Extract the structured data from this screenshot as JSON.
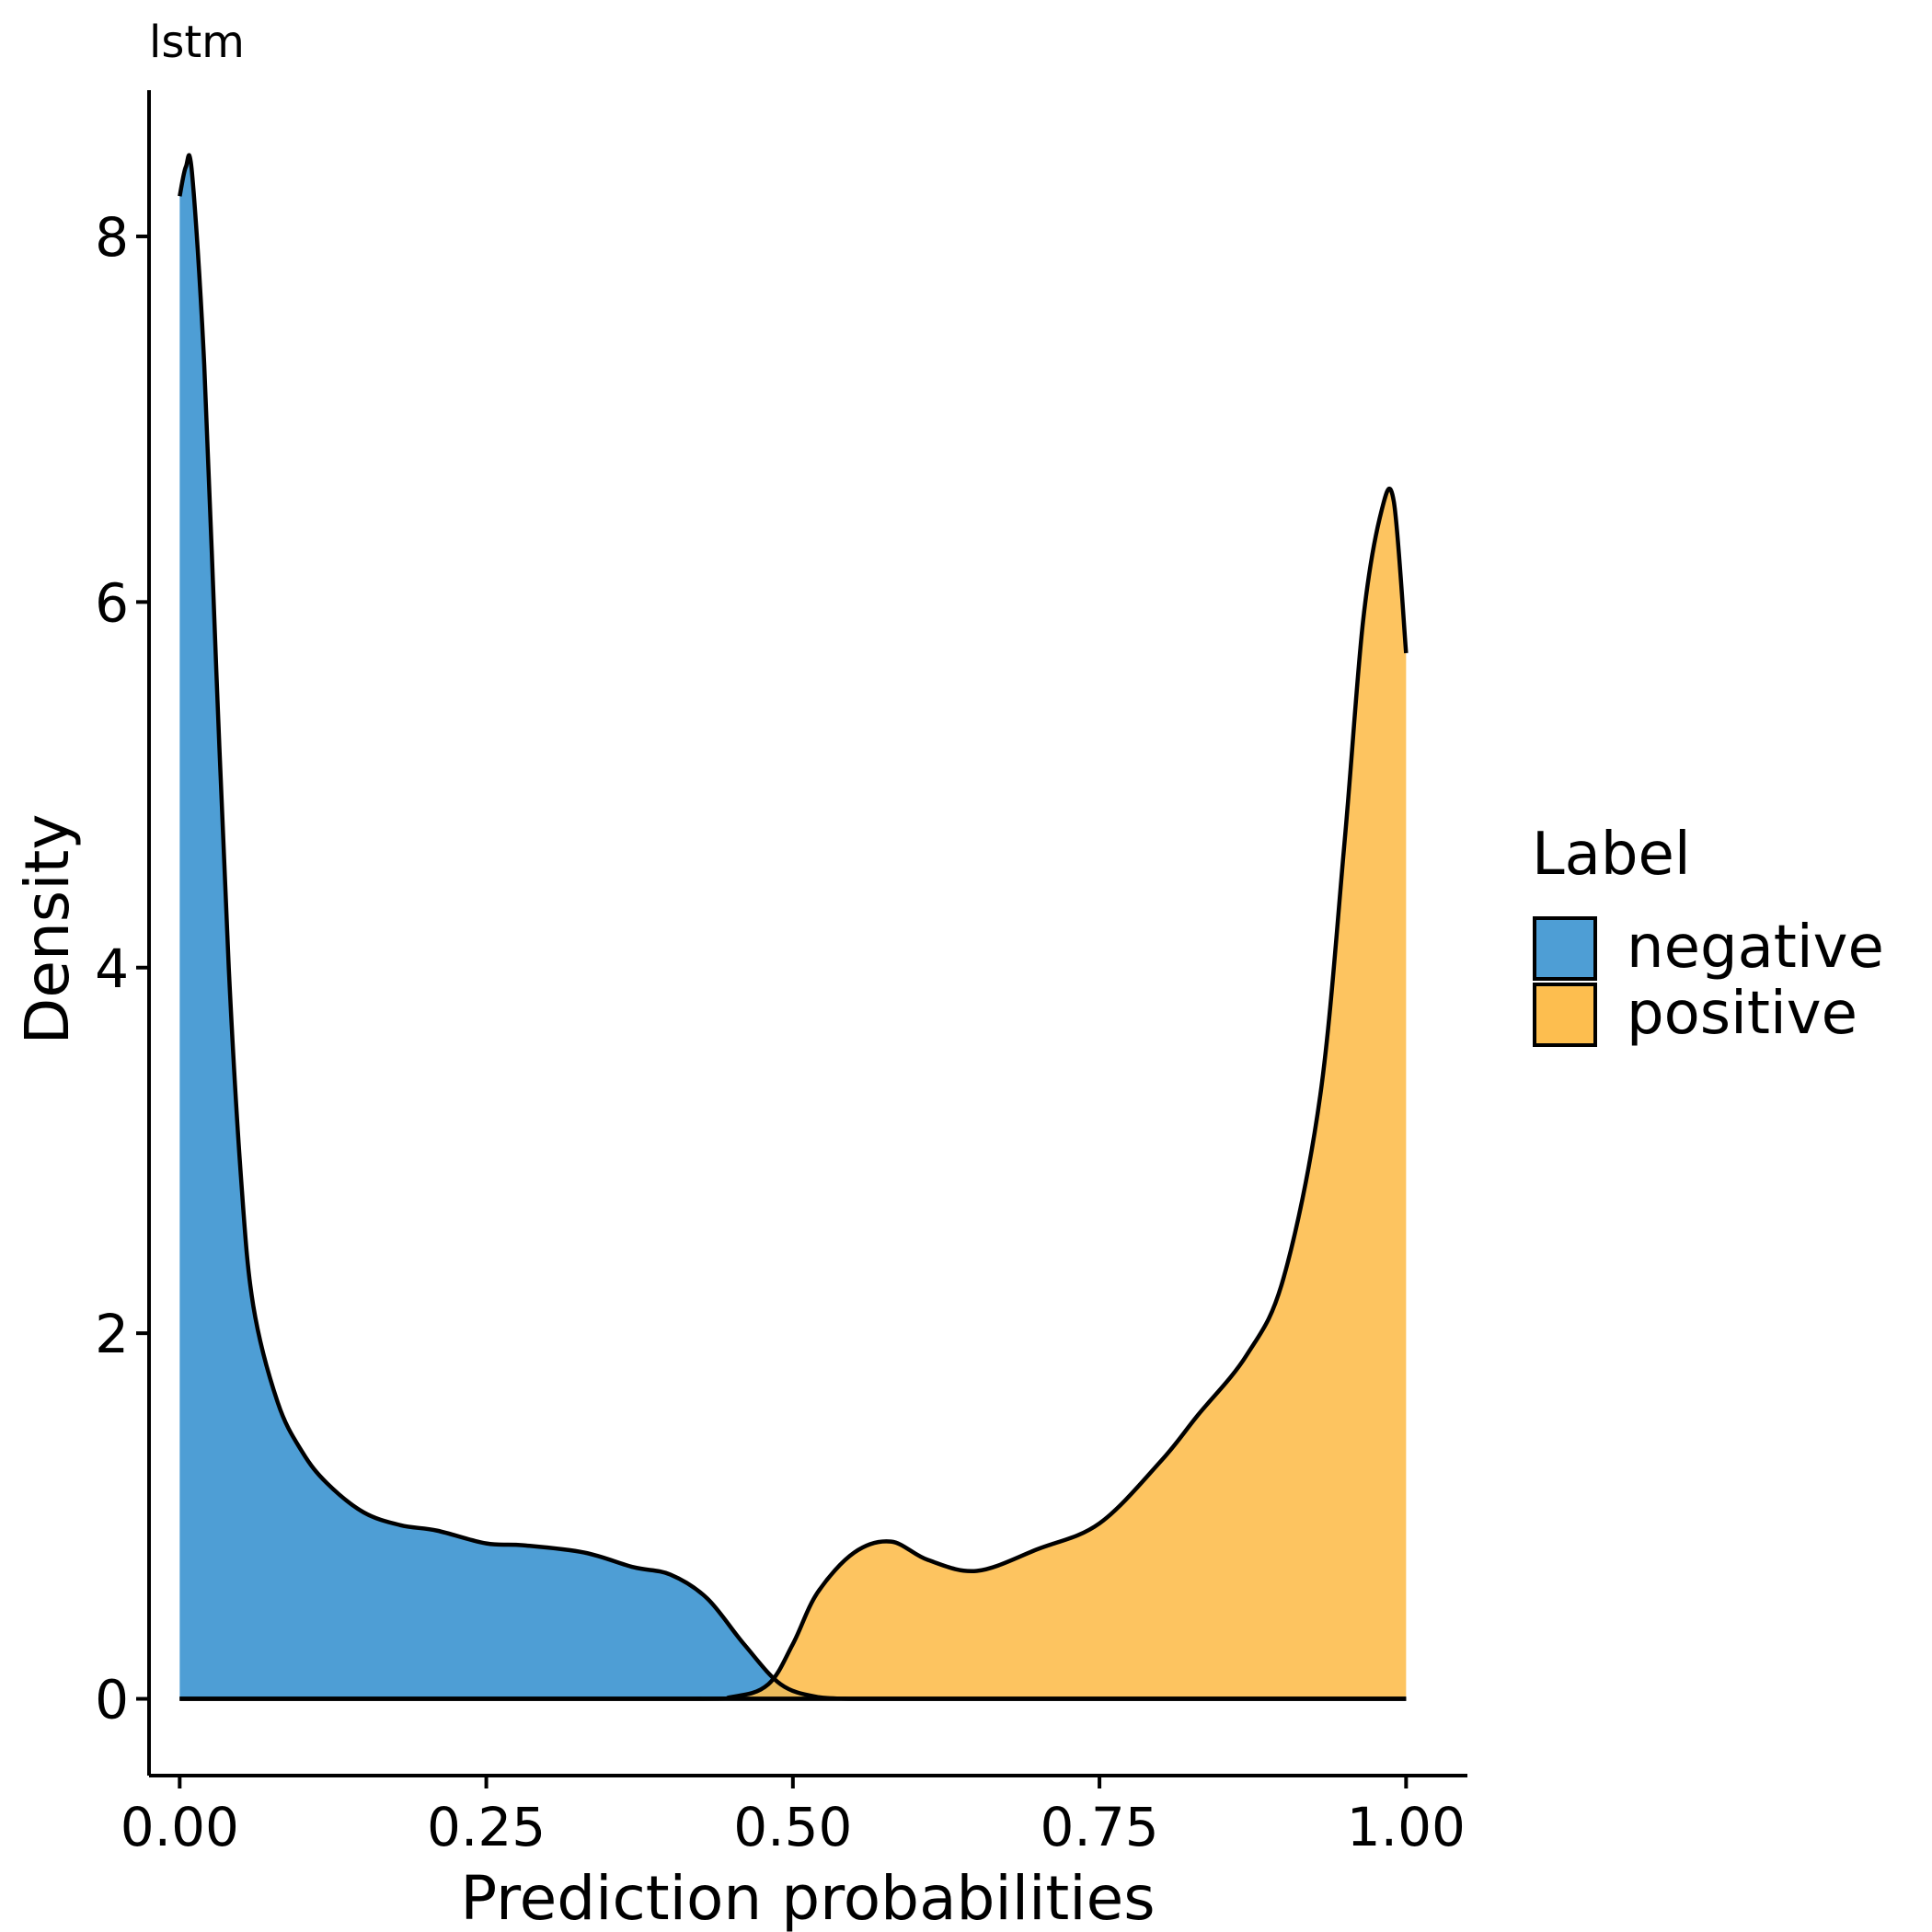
{
  "chart_data": {
    "type": "area",
    "title": "lstm",
    "xlabel": "Prediction probabilities",
    "ylabel": "Density",
    "xlim": [
      -0.025,
      1.05
    ],
    "ylim": [
      -0.42,
      8.8
    ],
    "x_ticks": [
      0.0,
      0.25,
      0.5,
      0.75,
      1.0
    ],
    "x_tick_labels": [
      "0.00",
      "0.25",
      "0.50",
      "0.75",
      "1.00"
    ],
    "y_ticks": [
      0,
      2,
      4,
      6,
      8
    ],
    "y_tick_labels": [
      "0",
      "2",
      "4",
      "6",
      "8"
    ],
    "grid": false,
    "legend": {
      "title": "Label",
      "placement": "right"
    },
    "series": [
      {
        "name": "negative",
        "color": "#4E9ED5",
        "x": [
          0.0,
          0.005,
          0.01,
          0.02,
          0.03,
          0.04,
          0.05,
          0.06,
          0.08,
          0.1,
          0.12,
          0.15,
          0.18,
          0.21,
          0.25,
          0.28,
          0.33,
          0.37,
          0.4,
          0.43,
          0.46,
          0.49,
          0.52,
          0.55,
          0.6,
          1.0
        ],
        "y": [
          8.22,
          8.38,
          8.35,
          7.3,
          5.6,
          4.0,
          2.85,
          2.15,
          1.62,
          1.35,
          1.18,
          1.02,
          0.95,
          0.92,
          0.85,
          0.84,
          0.8,
          0.72,
          0.68,
          0.55,
          0.3,
          0.08,
          0.01,
          0.0,
          0.0,
          0.0
        ]
      },
      {
        "name": "positive",
        "color": "#FDBE4F",
        "x": [
          0.0,
          0.4,
          0.45,
          0.48,
          0.5,
          0.52,
          0.55,
          0.58,
          0.61,
          0.65,
          0.7,
          0.75,
          0.8,
          0.83,
          0.87,
          0.9,
          0.93,
          0.95,
          0.965,
          0.98,
          0.99,
          1.0
        ],
        "y": [
          0.0,
          0.0,
          0.01,
          0.08,
          0.3,
          0.58,
          0.8,
          0.86,
          0.76,
          0.7,
          0.82,
          0.96,
          1.3,
          1.55,
          1.88,
          2.3,
          3.3,
          4.7,
          5.9,
          6.5,
          6.55,
          5.72
        ]
      }
    ],
    "overlap_color": "#C9A43E"
  }
}
